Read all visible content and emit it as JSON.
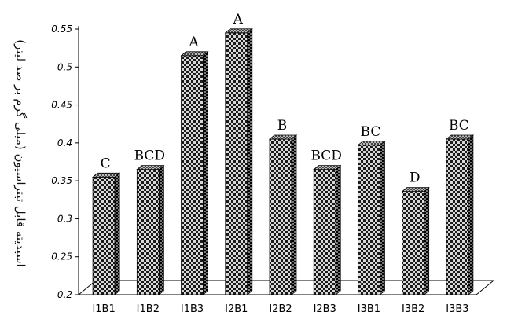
{
  "chart_data": {
    "type": "bar",
    "categories": [
      "I1B1",
      "I1B2",
      "I1B3",
      "I2B1",
      "I2B2",
      "I2B3",
      "I3B1",
      "I3B2",
      "I3B3"
    ],
    "values": [
      0.355,
      0.365,
      0.515,
      0.545,
      0.405,
      0.365,
      0.397,
      0.336,
      0.405
    ],
    "letters": [
      "C",
      "BCD",
      "A",
      "A",
      "B",
      "BCD",
      "BC",
      "D",
      "BC"
    ],
    "ylabel": "اسیدیته قابل تیتراسیون (میلی گرم بر صد لیتر)",
    "xlabel": "",
    "title": "",
    "ylim": [
      0.2,
      0.55
    ],
    "yticks": [
      "0.2",
      "0.25",
      "0.3",
      "0.35",
      "0.4",
      "0.45",
      "0.5",
      "0.55"
    ],
    "grid": false,
    "legend": "none",
    "bar_style": "3d-checkered",
    "colors": {
      "bar_dark": "#1a1a1a",
      "bar_light": "#d8d8d8",
      "axis": "#000000",
      "text": "#000000"
    }
  }
}
